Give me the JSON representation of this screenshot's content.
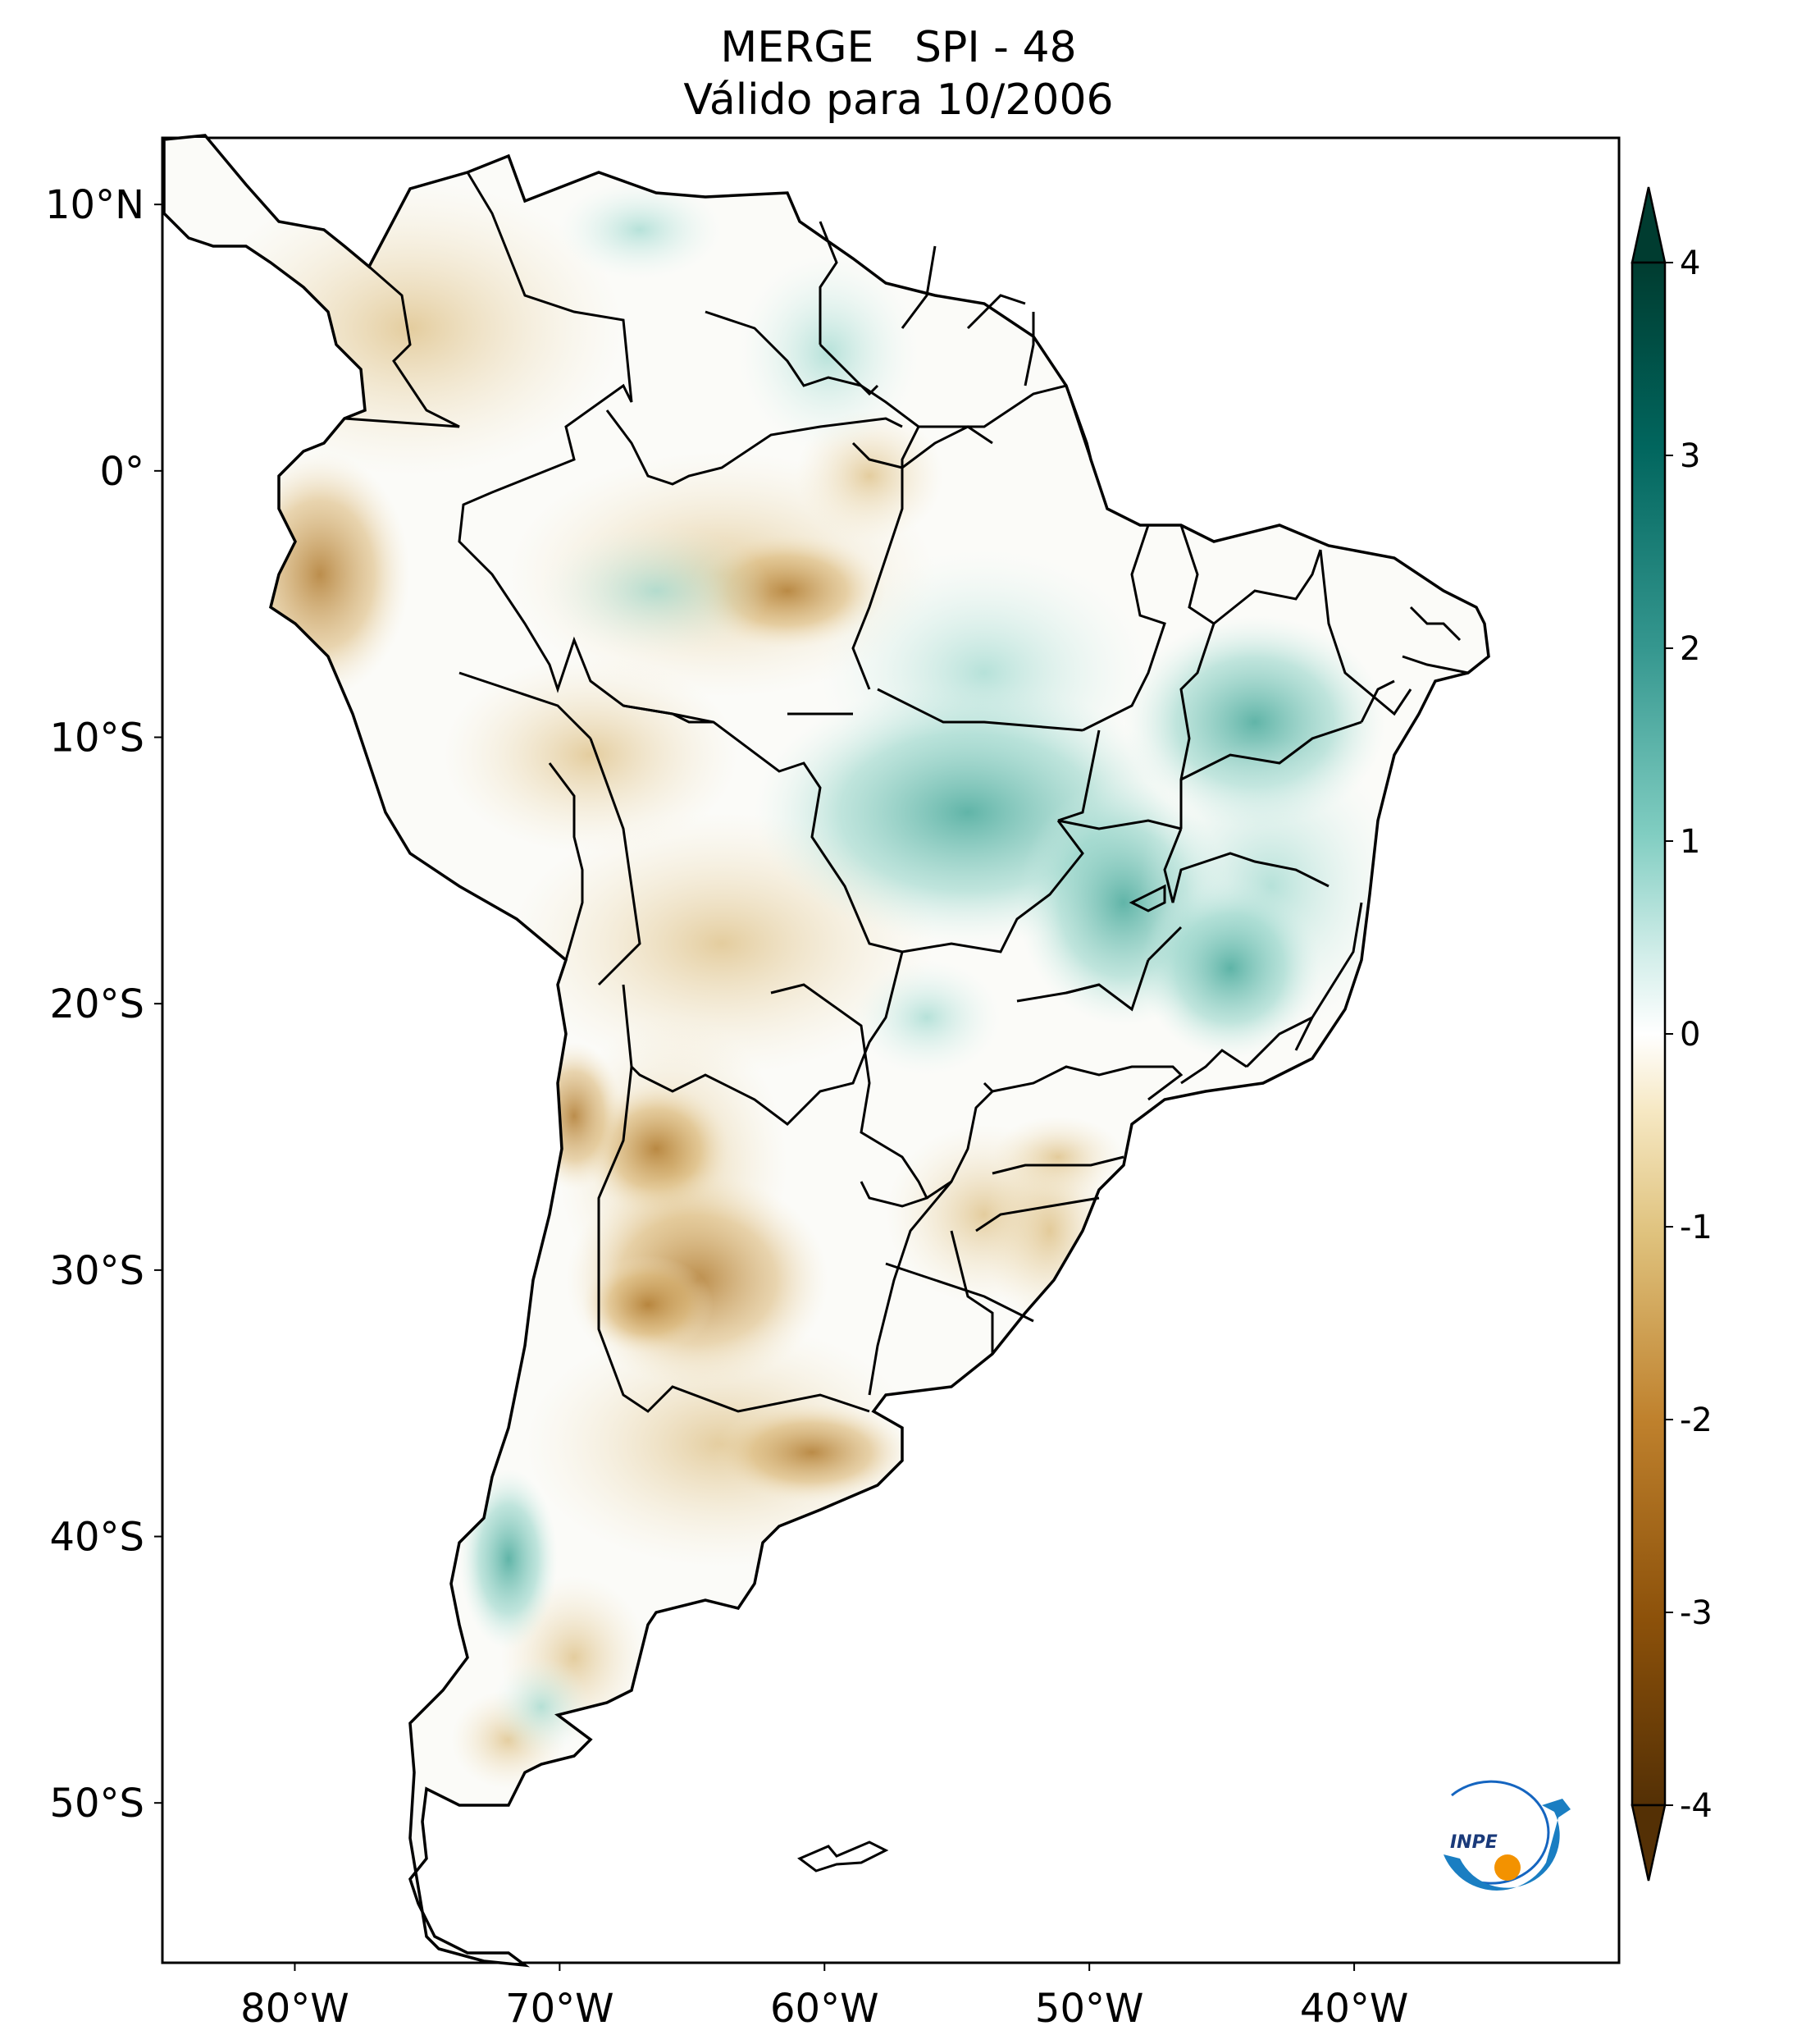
{
  "title": {
    "line1": "MERGE   SPI - 48",
    "line2": "Válido para 10/2006"
  },
  "map": {
    "lon_range": [
      -85,
      -30
    ],
    "lat_range": [
      -56,
      12.5
    ],
    "lon_ticks": [
      {
        "value": -80,
        "label": "80°W"
      },
      {
        "value": -70,
        "label": "70°W"
      },
      {
        "value": -60,
        "label": "60°W"
      },
      {
        "value": -50,
        "label": "50°W"
      },
      {
        "value": -40,
        "label": "40°W"
      }
    ],
    "lat_ticks": [
      {
        "value": 10,
        "label": "10°N"
      },
      {
        "value": 0,
        "label": "0°"
      },
      {
        "value": -10,
        "label": "10°S"
      },
      {
        "value": -20,
        "label": "20°S"
      },
      {
        "value": -30,
        "label": "30°S"
      },
      {
        "value": -40,
        "label": "40°S"
      },
      {
        "value": -50,
        "label": "50°S"
      }
    ]
  },
  "colorbar": {
    "min": -4,
    "max": 4,
    "ticks": [
      {
        "value": 4,
        "label": "4"
      },
      {
        "value": 3,
        "label": "3"
      },
      {
        "value": 2,
        "label": "2"
      },
      {
        "value": 1,
        "label": "1"
      },
      {
        "value": 0,
        "label": "0"
      },
      {
        "value": -1,
        "label": "-1"
      },
      {
        "value": -2,
        "label": "-2"
      },
      {
        "value": -3,
        "label": "-3"
      },
      {
        "value": -4,
        "label": "-4"
      }
    ],
    "palette": [
      "#543005",
      "#8c510a",
      "#bf812d",
      "#dfc27d",
      "#f6e8c3",
      "#ffffff",
      "#c7eae5",
      "#80cdc1",
      "#35978f",
      "#01665e",
      "#003c30"
    ]
  },
  "logo": {
    "text": "INPE",
    "colors": {
      "blue": "#1565c0",
      "orange": "#f39200"
    }
  }
}
